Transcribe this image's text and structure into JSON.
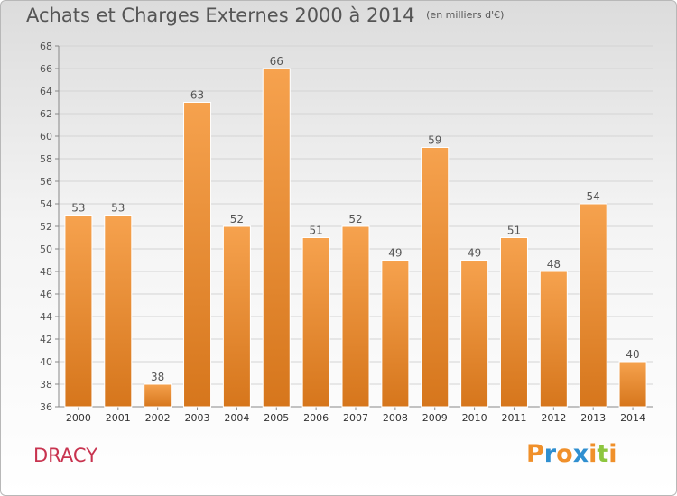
{
  "header": {
    "title": "Achats et Charges Externes 2000 à 2014",
    "subtitle": "(en milliers d'€)"
  },
  "footer": {
    "place": "DRACY",
    "logo_text": "Proxiti"
  },
  "colors": {
    "bar_light": "#f6a24e",
    "bar_dark": "#d6761c",
    "grid": "#d4d4d4",
    "text": "#555555",
    "place": "#c8334f",
    "logo_letters": [
      "#f0902a",
      "#2f8fd0",
      "#f0902a",
      "#2f8fd0",
      "#f0902a",
      "#8dc63f",
      "#f0902a"
    ]
  },
  "chart_data": {
    "type": "bar",
    "title": "Achats et Charges Externes 2000 à 2014",
    "subtitle": "(en milliers d'€)",
    "categories": [
      "2000",
      "2001",
      "2002",
      "2003",
      "2004",
      "2005",
      "2006",
      "2007",
      "2008",
      "2009",
      "2010",
      "2011",
      "2012",
      "2013",
      "2014"
    ],
    "values": [
      53,
      53,
      38,
      63,
      52,
      66,
      51,
      52,
      49,
      59,
      49,
      51,
      48,
      54,
      40
    ],
    "ylim": [
      36,
      68
    ],
    "yticks": [
      36,
      38,
      40,
      42,
      44,
      46,
      48,
      50,
      52,
      54,
      56,
      58,
      60,
      62,
      64,
      66,
      68
    ],
    "grid": true,
    "data_labels": true
  }
}
